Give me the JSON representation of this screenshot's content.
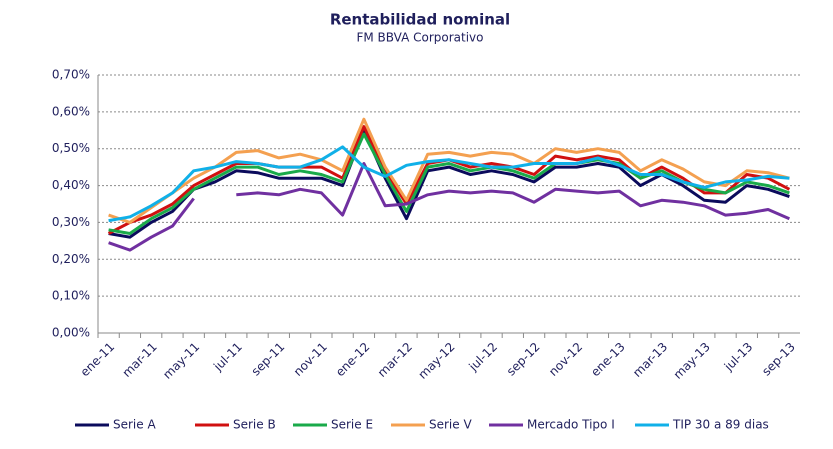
{
  "chart_data": {
    "type": "line",
    "title": "Rentabilidad nominal",
    "subtitle": "FM BBVA Corporativo",
    "categories": [
      "ene-11",
      null,
      "mar-11",
      null,
      "may-11",
      null,
      "jul-11",
      null,
      "sep-11",
      null,
      "nov-11",
      null,
      "ene-12",
      null,
      "mar-12",
      null,
      "may-12",
      null,
      "jul-12",
      null,
      "sep-12",
      null,
      "nov-12",
      null,
      "ene-13",
      null,
      "mar-13",
      null,
      "may-13",
      null,
      "jul-13",
      null,
      "sep-13"
    ],
    "series": [
      {
        "name": "Serie A",
        "color": "#0b0b5c",
        "values": [
          0.27,
          0.26,
          0.3,
          0.33,
          0.39,
          0.41,
          0.44,
          0.435,
          0.42,
          0.42,
          0.42,
          0.4,
          0.55,
          0.42,
          0.31,
          0.44,
          0.45,
          0.43,
          0.44,
          0.43,
          0.41,
          0.45,
          0.45,
          0.46,
          0.45,
          0.4,
          0.43,
          0.4,
          0.36,
          0.355,
          0.4,
          0.39,
          0.37
        ]
      },
      {
        "name": "Serie B",
        "color": "#d01010",
        "values": [
          0.27,
          0.3,
          0.32,
          0.35,
          0.4,
          0.43,
          0.46,
          0.46,
          0.45,
          0.45,
          0.45,
          0.42,
          0.56,
          0.44,
          0.35,
          0.46,
          0.47,
          0.45,
          0.46,
          0.45,
          0.43,
          0.48,
          0.47,
          0.48,
          0.47,
          0.42,
          0.45,
          0.42,
          0.38,
          0.38,
          0.43,
          0.42,
          0.39
        ]
      },
      {
        "name": "Serie E",
        "color": "#1aaa4a",
        "values": [
          0.28,
          0.27,
          0.31,
          0.34,
          0.39,
          0.42,
          0.45,
          0.45,
          0.43,
          0.44,
          0.43,
          0.41,
          0.54,
          0.43,
          0.33,
          0.45,
          0.46,
          0.44,
          0.45,
          0.44,
          0.42,
          0.46,
          0.46,
          0.47,
          0.46,
          0.42,
          0.44,
          0.41,
          0.39,
          0.38,
          0.41,
          0.4,
          0.38
        ]
      },
      {
        "name": "Serie V",
        "color": "#f4a050",
        "values": [
          0.32,
          0.3,
          0.34,
          0.38,
          0.42,
          0.45,
          0.49,
          0.495,
          0.475,
          0.485,
          0.47,
          0.44,
          0.58,
          0.45,
          0.36,
          0.485,
          0.49,
          0.48,
          0.49,
          0.485,
          0.46,
          0.5,
          0.49,
          0.5,
          0.49,
          0.44,
          0.47,
          0.445,
          0.41,
          0.4,
          0.44,
          0.435,
          0.42
        ]
      },
      {
        "name": "Mercado Tipo I",
        "color": "#7030a0",
        "values": [
          0.245,
          0.225,
          0.26,
          0.29,
          0.365,
          null,
          0.375,
          0.38,
          0.375,
          0.39,
          0.38,
          0.32,
          0.46,
          0.345,
          0.35,
          0.375,
          0.385,
          0.38,
          0.385,
          0.38,
          0.355,
          0.39,
          0.385,
          0.38,
          0.385,
          0.345,
          0.36,
          0.355,
          0.345,
          0.32,
          0.325,
          0.335,
          0.31
        ]
      },
      {
        "name": "TIP 30 a 89 dias",
        "color": "#10b0e8",
        "values": [
          0.305,
          0.315,
          0.345,
          0.38,
          0.44,
          0.45,
          0.465,
          0.46,
          0.45,
          0.45,
          0.47,
          0.505,
          0.45,
          0.425,
          0.455,
          0.465,
          0.47,
          0.46,
          0.45,
          0.45,
          0.46,
          0.46,
          0.46,
          0.475,
          0.455,
          0.43,
          0.43,
          0.41,
          0.395,
          0.41,
          0.415,
          0.425,
          0.42
        ]
      }
    ],
    "ylim": [
      0,
      0.7
    ],
    "yticks": [
      {
        "value": 0,
        "label": "0,00%"
      },
      {
        "value": 0.1,
        "label": "0,10%"
      },
      {
        "value": 0.2,
        "label": "0,20%"
      },
      {
        "value": 0.3,
        "label": "0,30%"
      },
      {
        "value": 0.4,
        "label": "0,40%"
      },
      {
        "value": 0.5,
        "label": "0,50%"
      },
      {
        "value": 0.6,
        "label": "0,60%"
      },
      {
        "value": 0.7,
        "label": "0,70%"
      }
    ],
    "grid": true,
    "legend": "bottom"
  }
}
